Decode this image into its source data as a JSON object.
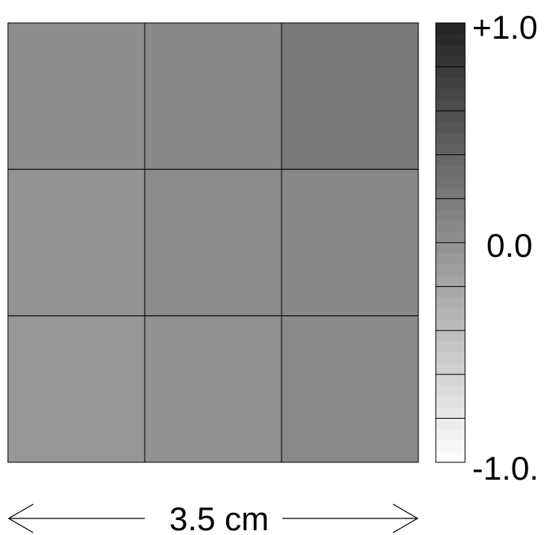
{
  "chart_data": {
    "type": "heatmap",
    "rows": 3,
    "cols": 3,
    "values": [
      [
        0.02,
        0.08,
        0.22
      ],
      [
        -0.02,
        0.05,
        0.08
      ],
      [
        -0.06,
        0.0,
        0.06
      ]
    ],
    "colorbar": {
      "min": -1.0,
      "max": 1.0,
      "tick_labels": [
        "+1.0",
        "0.0",
        "-1.0."
      ],
      "low_color": "#ffffff",
      "high_color": "#222222"
    },
    "scale_label": "3.5 cm",
    "grid": true
  }
}
